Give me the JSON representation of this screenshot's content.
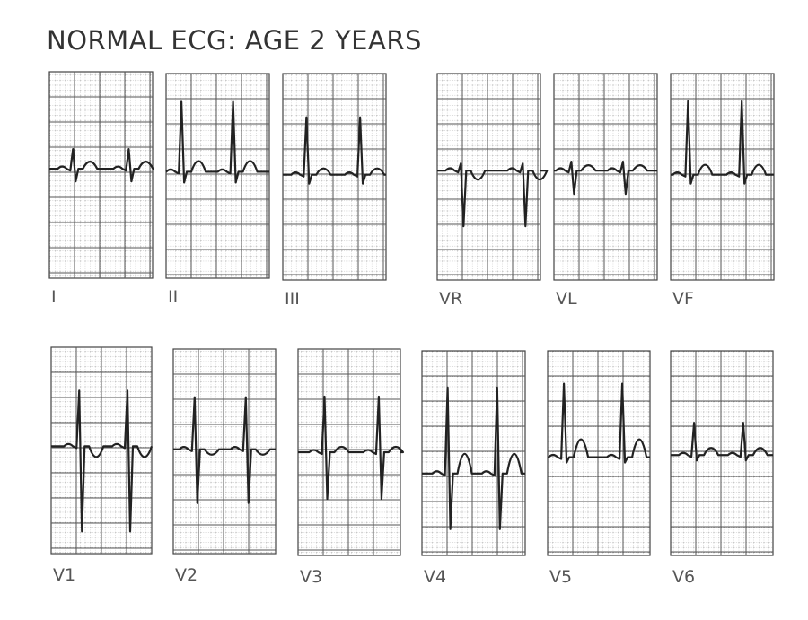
{
  "title": "NORMAL ECG: AGE 2 YEARS",
  "leads": [
    "I",
    "II",
    "III",
    "VR",
    "VL",
    "VF",
    "V1",
    "V2",
    "V3",
    "V4",
    "V5",
    "V6"
  ]
}
